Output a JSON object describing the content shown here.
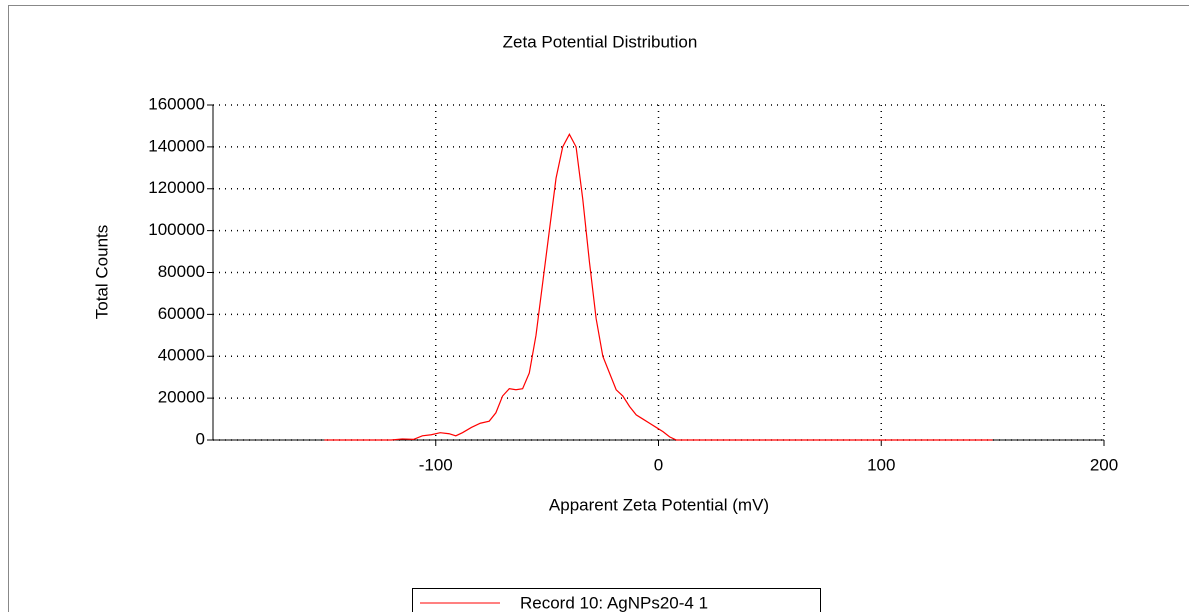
{
  "chart_data": {
    "type": "line",
    "title": "Zeta Potential Distribution",
    "x_label": "Apparent Zeta Potential (mV)",
    "y_label": "Total Counts",
    "xlim": [
      -200,
      200
    ],
    "xticks": [
      -100,
      0,
      100,
      200
    ],
    "ylim": [
      0,
      160000
    ],
    "yticks": [
      0,
      20000,
      40000,
      60000,
      80000,
      100000,
      120000,
      140000,
      160000
    ],
    "grid": true,
    "legend": "bottom",
    "series": [
      {
        "name": "Record 10: AgNPs20-4 1",
        "color": "#ff0000",
        "x": [
          -150,
          -120,
          -115,
          -110,
          -106,
          -102,
          -98,
          -94,
          -91,
          -88,
          -84,
          -80,
          -76,
          -73,
          -70,
          -67,
          -64,
          -61,
          -58,
          -55,
          -52,
          -49,
          -46,
          -43,
          -40,
          -37,
          -34,
          -31,
          -28,
          -25,
          -22,
          -19,
          -16,
          -13,
          -10,
          -7,
          -4,
          -1,
          2,
          5,
          8,
          11,
          150
        ],
        "values": [
          0,
          0,
          500,
          300,
          2000,
          2500,
          3500,
          3000,
          2000,
          3500,
          6000,
          8000,
          9000,
          13000,
          21000,
          24500,
          24000,
          24500,
          32000,
          50000,
          75000,
          100000,
          125000,
          140000,
          146000,
          140000,
          115000,
          85000,
          58000,
          40000,
          32000,
          24000,
          21000,
          16000,
          12000,
          10000,
          8000,
          6000,
          4000,
          1500,
          0,
          0,
          0
        ]
      }
    ]
  }
}
